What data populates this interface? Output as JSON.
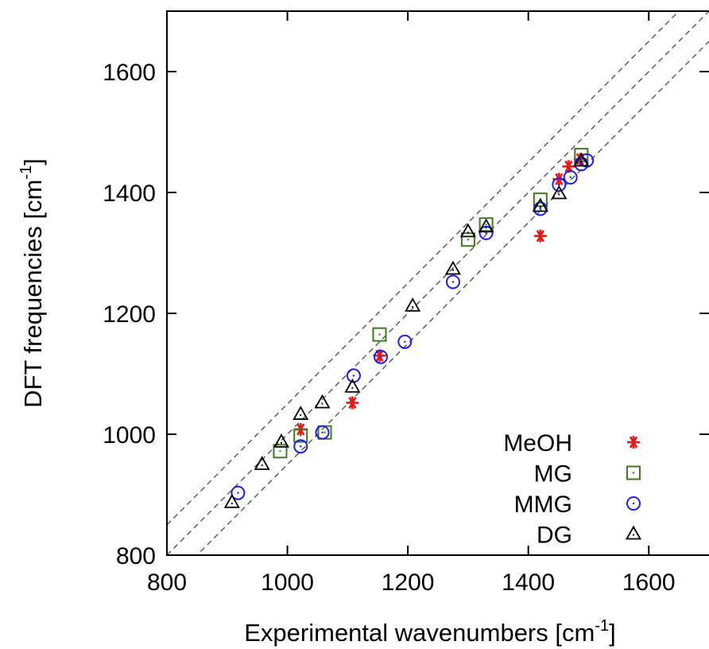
{
  "chart_data": {
    "type": "scatter",
    "title": "",
    "xlabel": {
      "text": "Experimental wavenumbers [cm",
      "sup": "-1",
      "suffix": "]"
    },
    "ylabel": {
      "text": "DFT frequencies [cm",
      "sup": "-1",
      "suffix": "]"
    },
    "xlim": [
      800,
      1700
    ],
    "ylim": [
      800,
      1700
    ],
    "xticks": [
      "800",
      "1000",
      "1200",
      "1400",
      "1600"
    ],
    "yticks": [
      "800",
      "1000",
      "1200",
      "1400",
      "1600"
    ],
    "grid": false,
    "legend_position": "bottom-right",
    "reference_lines": [
      {
        "slope": 1,
        "intercept": 50
      },
      {
        "slope": 1,
        "intercept": 0
      },
      {
        "slope": 1,
        "intercept": -50
      }
    ],
    "series": [
      {
        "name": "MeOH",
        "marker": "asterisk",
        "color": "#e31a1c",
        "points": [
          [
            1022,
            1008
          ],
          [
            1108,
            1052
          ],
          [
            1153,
            1130
          ],
          [
            1420,
            1328
          ],
          [
            1451,
            1422
          ],
          [
            1467,
            1443
          ],
          [
            1486,
            1455
          ]
        ]
      },
      {
        "name": "MG",
        "marker": "square",
        "color": "#3f7a1f",
        "points": [
          [
            988,
            972
          ],
          [
            1022,
            998
          ],
          [
            1062,
            1003
          ],
          [
            1153,
            1165
          ],
          [
            1300,
            1322
          ],
          [
            1330,
            1347
          ],
          [
            1420,
            1388
          ],
          [
            1488,
            1462
          ]
        ]
      },
      {
        "name": "MMG",
        "marker": "circle",
        "color": "#1f1fe0",
        "points": [
          [
            918,
            903
          ],
          [
            1022,
            980
          ],
          [
            1058,
            1003
          ],
          [
            1110,
            1097
          ],
          [
            1155,
            1128
          ],
          [
            1195,
            1153
          ],
          [
            1275,
            1252
          ],
          [
            1330,
            1333
          ],
          [
            1420,
            1373
          ],
          [
            1451,
            1413
          ],
          [
            1470,
            1425
          ],
          [
            1488,
            1447
          ],
          [
            1497,
            1453
          ]
        ]
      },
      {
        "name": "DG",
        "marker": "triangle",
        "color": "#000000",
        "points": [
          [
            908,
            887
          ],
          [
            958,
            950
          ],
          [
            990,
            987
          ],
          [
            1022,
            1033
          ],
          [
            1058,
            1052
          ],
          [
            1108,
            1078
          ],
          [
            1208,
            1212
          ],
          [
            1275,
            1273
          ],
          [
            1300,
            1335
          ],
          [
            1330,
            1343
          ],
          [
            1420,
            1377
          ],
          [
            1451,
            1398
          ],
          [
            1488,
            1452
          ]
        ]
      }
    ]
  }
}
